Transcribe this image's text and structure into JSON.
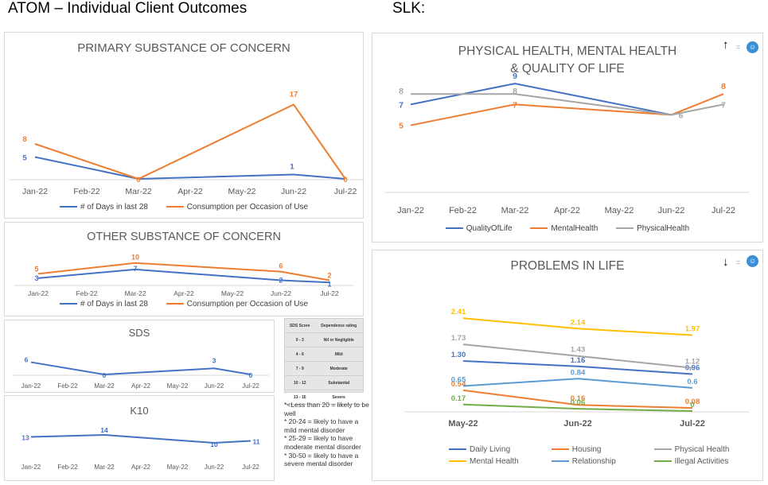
{
  "header": {
    "title": "ATOM – Individual Client Outcomes",
    "slk_label": "SLK:"
  },
  "colors": {
    "blue": "#4472c4",
    "orange": "#ed7d31",
    "gray": "#a5a5a5",
    "yellow": "#ffc000",
    "lightblue": "#5b9bd5",
    "green": "#70ad47"
  },
  "controls": {
    "up_arrow": "↑",
    "down_arrow": "↓",
    "equals": "=",
    "icon_name": "face-icon"
  },
  "sds_table": {
    "header": [
      "SDS Score",
      "Dependence rating"
    ],
    "rows": [
      [
        "0 - 3",
        "Nil or Negligible"
      ],
      [
        "4 - 6",
        "Mild"
      ],
      [
        "7 - 9",
        "Moderate"
      ],
      [
        "10 - 12",
        "Substantial"
      ],
      [
        "13 - 15",
        "Severe"
      ]
    ]
  },
  "k10_notes": [
    "*<Less than 20 = likely to be well",
    "* 20-24 = likely to have a mild mental disorder",
    "* 25-29 = likely to have moderate mental disorder",
    "* 30-50 = likely to have a severe mental disorder"
  ],
  "chart_data": [
    {
      "id": "primary",
      "type": "line",
      "title": "PRIMARY SUBSTANCE OF CONCERN",
      "categories": [
        "Jan-22",
        "Feb-22",
        "Mar-22",
        "Apr-22",
        "May-22",
        "Jun-22",
        "Jul-22"
      ],
      "series": [
        {
          "name": "# of Days in last 28",
          "color": "#4472c4",
          "values": [
            5,
            null,
            0,
            null,
            null,
            1,
            0
          ],
          "labels": [
            "5",
            "",
            "",
            "",
            "",
            "1",
            ""
          ]
        },
        {
          "name": "Consumption per Occasion of Use",
          "color": "#ed7d31",
          "values": [
            8,
            null,
            0,
            null,
            null,
            17,
            0
          ],
          "labels": [
            "8",
            "",
            "0",
            "",
            "",
            "17",
            "0"
          ]
        }
      ],
      "ylim": [
        0,
        18
      ]
    },
    {
      "id": "other",
      "type": "line",
      "title": "OTHER SUBSTANCE OF CONCERN",
      "categories": [
        "Jan-22",
        "Feb-22",
        "Mar-22",
        "Apr-22",
        "May-22",
        "Jun-22",
        "Jul-22"
      ],
      "series": [
        {
          "name": "# of Days in last 28",
          "color": "#4472c4",
          "values": [
            3,
            null,
            7,
            null,
            null,
            2,
            1
          ],
          "labels": [
            "3",
            "",
            "7",
            "",
            "",
            "2",
            "1"
          ]
        },
        {
          "name": "Consumption per Occasion of Use",
          "color": "#ed7d31",
          "values": [
            5,
            null,
            10,
            null,
            null,
            6,
            2
          ],
          "labels": [
            "5",
            "",
            "10",
            "",
            "",
            "6",
            "2"
          ]
        }
      ],
      "ylim": [
        0,
        11
      ]
    },
    {
      "id": "sds",
      "type": "line",
      "title": "SDS",
      "categories": [
        "Jan-22",
        "Feb-22",
        "Mar-22",
        "Apr-22",
        "May-22",
        "Jun-22",
        "Jul-22"
      ],
      "series": [
        {
          "name": "",
          "color": "#4472c4",
          "values": [
            6,
            null,
            0,
            null,
            null,
            3,
            0
          ],
          "labels": [
            "6",
            "",
            "0",
            "",
            "",
            "3",
            "0"
          ]
        }
      ],
      "ylim": [
        0,
        7
      ]
    },
    {
      "id": "k10",
      "type": "line",
      "title": "K10",
      "categories": [
        "Jan-22",
        "Feb-22",
        "Mar-22",
        "Apr-22",
        "May-22",
        "Jun-22",
        "Jul-22"
      ],
      "series": [
        {
          "name": "",
          "color": "#4472c4",
          "values": [
            13,
            null,
            14,
            null,
            null,
            10,
            11
          ],
          "labels": [
            "13",
            "",
            "14",
            "",
            "",
            "10",
            "11"
          ]
        }
      ],
      "ylim": [
        8,
        16
      ]
    },
    {
      "id": "physical",
      "type": "line",
      "title": "PHYSICAL HEALTH, MENTAL HEALTH & QUALITY OF LIFE",
      "title_lines": [
        "PHYSICAL HEALTH, MENTAL HEALTH",
        "& QUALITY OF LIFE"
      ],
      "categories": [
        "Jan-22",
        "Feb-22",
        "Mar-22",
        "Apr-22",
        "May-22",
        "Jun-22",
        "Jul-22"
      ],
      "series": [
        {
          "name": "QualityOfLife",
          "color": "#4472c4",
          "values": [
            7,
            null,
            9,
            null,
            null,
            6,
            null
          ],
          "labels": [
            "7",
            "",
            "9",
            "",
            "",
            "",
            ""
          ]
        },
        {
          "name": "MentalHealth",
          "color": "#ed7d31",
          "values": [
            5,
            null,
            7,
            null,
            null,
            6,
            8
          ],
          "labels": [
            "5",
            "",
            "7",
            "",
            "",
            "",
            "8"
          ]
        },
        {
          "name": "PhysicalHealth",
          "color": "#a5a5a5",
          "values": [
            8,
            null,
            8,
            null,
            null,
            6,
            7
          ],
          "labels": [
            "8",
            "",
            "8",
            "",
            "",
            "6",
            "7"
          ]
        }
      ],
      "ylim": [
        1,
        10
      ]
    },
    {
      "id": "problems",
      "type": "line",
      "title": "PROBLEMS IN LIFE",
      "categories": [
        "May-22",
        "Jun-22",
        "Jul-22"
      ],
      "series": [
        {
          "name": "Daily Living",
          "color": "#4472c4",
          "values": [
            1.3,
            1.16,
            0.96
          ],
          "labels": [
            "1.30",
            "1.16",
            "0.96"
          ]
        },
        {
          "name": "Housing",
          "color": "#ed7d31",
          "values": [
            0.54,
            0.16,
            0.08
          ],
          "labels": [
            "0.54",
            "0.16",
            "0.08"
          ]
        },
        {
          "name": "Physical Health",
          "color": "#a5a5a5",
          "values": [
            1.73,
            1.43,
            1.12
          ],
          "labels": [
            "1.73",
            "1.43",
            "1.12"
          ]
        },
        {
          "name": "Mental Health",
          "color": "#ffc000",
          "values": [
            2.41,
            2.14,
            1.97
          ],
          "labels": [
            "2.41",
            "2.14",
            "1.97"
          ]
        },
        {
          "name": "Relationship",
          "color": "#5b9bd5",
          "values": [
            0.65,
            0.84,
            0.6
          ],
          "labels": [
            "0.65",
            "0.84",
            "0.6"
          ]
        },
        {
          "name": "Illegal Activities",
          "color": "#70ad47",
          "values": [
            0.17,
            0.06,
            0
          ],
          "labels": [
            "0.17",
            "0.06",
            "0"
          ]
        }
      ],
      "ylim": [
        0,
        2.6
      ]
    }
  ]
}
